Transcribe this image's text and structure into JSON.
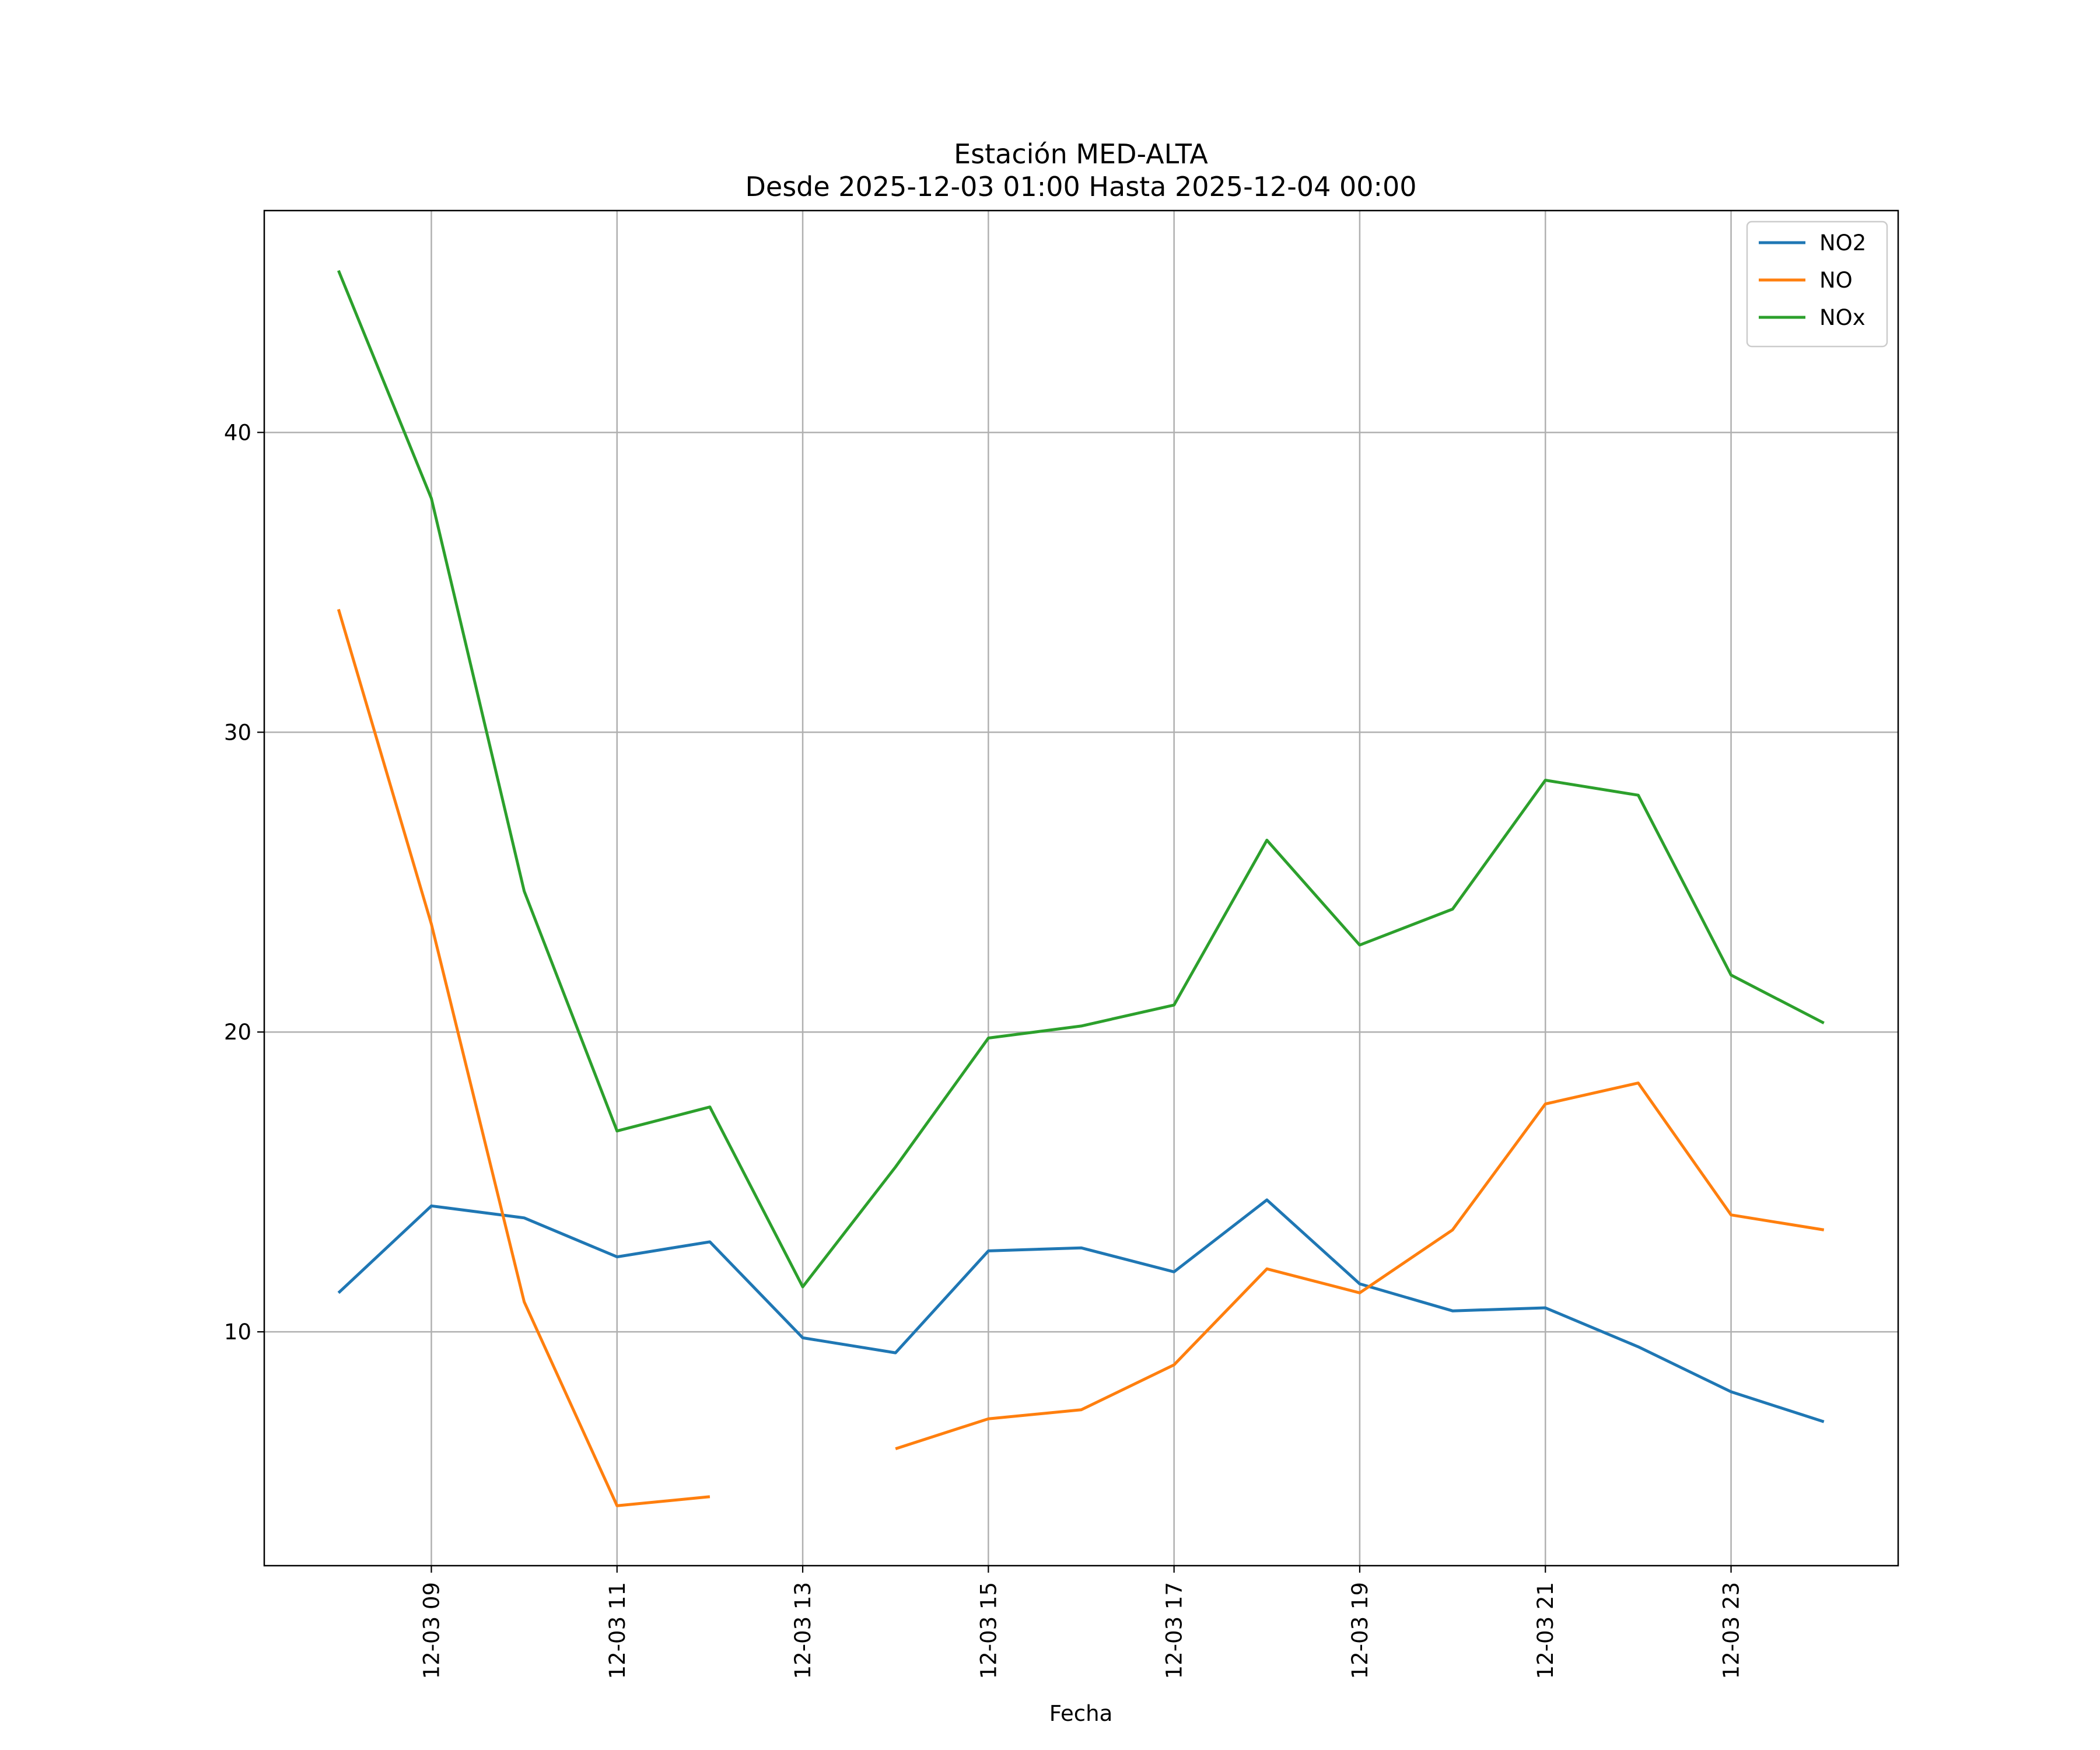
{
  "chart_data": {
    "type": "line",
    "title": "Estación MED-ALTA",
    "subtitle": "Desde 2025-12-03 01:00 Hasta 2025-12-04 00:00",
    "xlabel": "Fecha",
    "ylabel": "",
    "x": [
      "2025-12-03 08:00",
      "2025-12-03 09:00",
      "2025-12-03 10:00",
      "2025-12-03 11:00",
      "2025-12-03 12:00",
      "2025-12-03 13:00",
      "2025-12-03 14:00",
      "2025-12-03 15:00",
      "2025-12-03 16:00",
      "2025-12-03 17:00",
      "2025-12-03 18:00",
      "2025-12-03 19:00",
      "2025-12-03 20:00",
      "2025-12-03 21:00",
      "2025-12-03 22:00",
      "2025-12-03 23:00",
      "2025-12-04 00:00"
    ],
    "xlim": [
      "2025-12-03 07:12",
      "2025-12-04 00:48"
    ],
    "x_ticks": [
      "12-03 09",
      "12-03 11",
      "12-03 13",
      "12-03 15",
      "12-03 17",
      "12-03 19",
      "12-03 21",
      "12-03 23"
    ],
    "x_tick_values": [
      "2025-12-03 09:00",
      "2025-12-03 11:00",
      "2025-12-03 13:00",
      "2025-12-03 15:00",
      "2025-12-03 17:00",
      "2025-12-03 19:00",
      "2025-12-03 21:00",
      "2025-12-03 23:00"
    ],
    "ylim": [
      2.2,
      47.4
    ],
    "y_ticks": [
      10,
      20,
      30,
      40
    ],
    "grid": true,
    "legend_position": "top-right",
    "series": [
      {
        "name": "NO2",
        "color": "#1f77b4",
        "values": [
          11.3,
          14.2,
          13.8,
          12.5,
          13.0,
          9.8,
          9.3,
          12.7,
          12.8,
          12.0,
          14.4,
          11.6,
          10.7,
          10.8,
          9.5,
          8.0,
          7.0
        ]
      },
      {
        "name": "NO",
        "color": "#ff7f0e",
        "values": [
          34.1,
          23.6,
          11.0,
          4.2,
          4.5,
          null,
          6.1,
          7.1,
          7.4,
          8.9,
          12.1,
          11.3,
          13.4,
          17.6,
          18.3,
          13.9,
          13.4
        ]
      },
      {
        "name": "NOx",
        "color": "#2ca02c",
        "values": [
          45.4,
          37.8,
          24.7,
          16.7,
          17.5,
          11.5,
          15.5,
          19.8,
          20.2,
          20.9,
          26.4,
          22.9,
          24.1,
          28.4,
          27.9,
          21.9,
          20.3
        ]
      }
    ]
  }
}
